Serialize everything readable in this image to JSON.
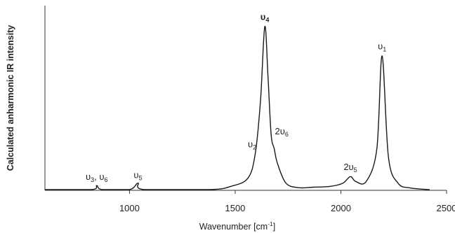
{
  "chart_data": {
    "type": "line",
    "title": "",
    "xlabel": "Wavenumber [cm",
    "xlabel_unit_exp": "-1",
    "xlabel_close": "]",
    "ylabel": "Calculated anharmonic IR intensity",
    "xlim": [
      600,
      2500
    ],
    "ylim": [
      0,
      1.12
    ],
    "x_ticks": [
      1000,
      1500,
      2000,
      2500
    ],
    "grid": false,
    "series": [
      {
        "x": [
          600,
          820,
          845,
          870,
          1000,
          1040,
          1070,
          1380,
          1480,
          1560,
          1595,
          1620,
          1640,
          1655,
          1670,
          1685,
          1700,
          1740,
          1800,
          1870,
          1950,
          2010,
          2045,
          2070,
          2120,
          2170,
          2195,
          2225,
          2270,
          2330,
          2420
        ],
        "y": [
          0,
          0,
          0.025,
          0,
          0,
          0.04,
          0,
          0,
          0.02,
          0.07,
          0.22,
          0.55,
          1.0,
          0.7,
          0.34,
          0.25,
          0.16,
          0.04,
          0.012,
          0.015,
          0.02,
          0.04,
          0.08,
          0.05,
          0.05,
          0.25,
          0.82,
          0.2,
          0.04,
          0.01,
          0
        ]
      }
    ],
    "annotations": [
      {
        "id": "u3u6",
        "x": 845,
        "y": 0.06,
        "parts": [
          {
            "t": "υ"
          },
          {
            "t": "3",
            "sub": true
          },
          {
            "t": ", υ"
          },
          {
            "t": "6",
            "sub": true
          }
        ]
      },
      {
        "id": "u5",
        "x": 1040,
        "y": 0.07,
        "parts": [
          {
            "t": "υ"
          },
          {
            "t": "5",
            "sub": true
          }
        ]
      },
      {
        "id": "u2",
        "x": 1580,
        "y": 0.26,
        "parts": [
          {
            "t": "υ"
          },
          {
            "t": "2",
            "sub": true
          }
        ]
      },
      {
        "id": "u4",
        "x": 1640,
        "y": 1.04,
        "bold": true,
        "parts": [
          {
            "t": "υ"
          },
          {
            "t": "4",
            "sub": true
          }
        ]
      },
      {
        "id": "2u6",
        "x": 1720,
        "y": 0.34,
        "parts": [
          {
            "t": "2υ"
          },
          {
            "t": "6",
            "sub": true
          }
        ]
      },
      {
        "id": "2u5",
        "x": 2045,
        "y": 0.12,
        "parts": [
          {
            "t": "2υ"
          },
          {
            "t": "5",
            "sub": true
          }
        ]
      },
      {
        "id": "u1",
        "x": 2195,
        "y": 0.86,
        "parts": [
          {
            "t": "υ"
          },
          {
            "t": "1",
            "sub": true
          }
        ]
      }
    ]
  }
}
